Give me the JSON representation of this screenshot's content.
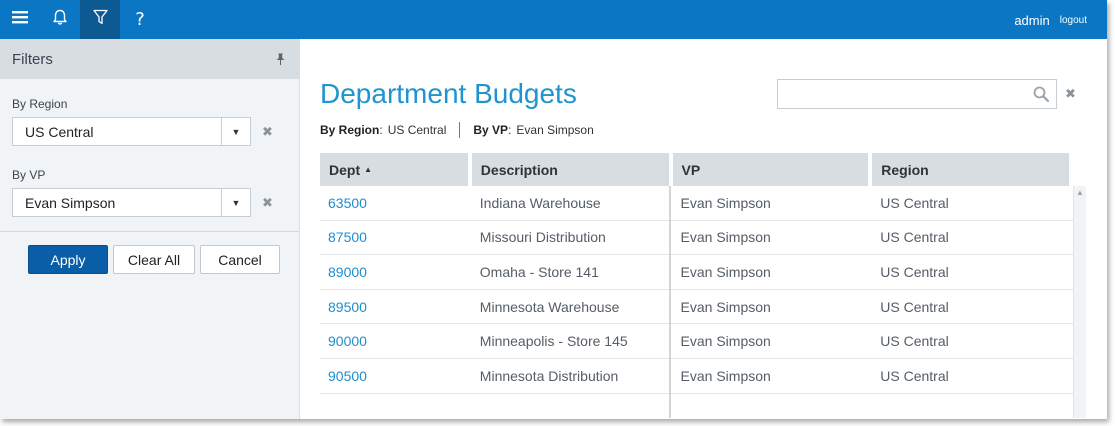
{
  "topbar": {
    "user": "admin",
    "logout": "logout",
    "help_glyph": "?",
    "icons": [
      "menu-icon",
      "bell-icon",
      "filter-icon",
      "help-icon"
    ],
    "color": "#0a76c4"
  },
  "sidebar": {
    "title": "Filters",
    "filters": [
      {
        "label": "By Region",
        "value": "US Central"
      },
      {
        "label": "By VP",
        "value": "Evan Simpson"
      }
    ],
    "buttons": {
      "apply": "Apply",
      "clear_all": "Clear All",
      "cancel": "Cancel"
    }
  },
  "main": {
    "title": "Department Budgets",
    "search": {
      "value": "",
      "placeholder": ""
    },
    "breadcrumbs": [
      {
        "label": "By Region",
        "value": "US Central"
      },
      {
        "label": "By VP",
        "value": "Evan Simpson"
      }
    ],
    "grid": {
      "columns": [
        "Dept",
        "Description",
        "VP",
        "Region"
      ],
      "sort": {
        "column": "Dept",
        "direction": "ascending",
        "glyph": "▲"
      },
      "rows": [
        [
          "63500",
          "Indiana Warehouse",
          "Evan Simpson",
          "US Central"
        ],
        [
          "87500",
          "Missouri Distribution",
          "Evan Simpson",
          "US Central"
        ],
        [
          "89000",
          "Omaha - Store 141",
          "Evan Simpson",
          "US Central"
        ],
        [
          "89500",
          "Minnesota Warehouse",
          "Evan Simpson",
          "US Central"
        ],
        [
          "90000",
          "Minneapolis - Store 145",
          "Evan Simpson",
          "US Central"
        ],
        [
          "90500",
          "Minnesota Distribution",
          "Evan Simpson",
          "US Central"
        ]
      ]
    },
    "accent_color": "#1f94cf"
  }
}
